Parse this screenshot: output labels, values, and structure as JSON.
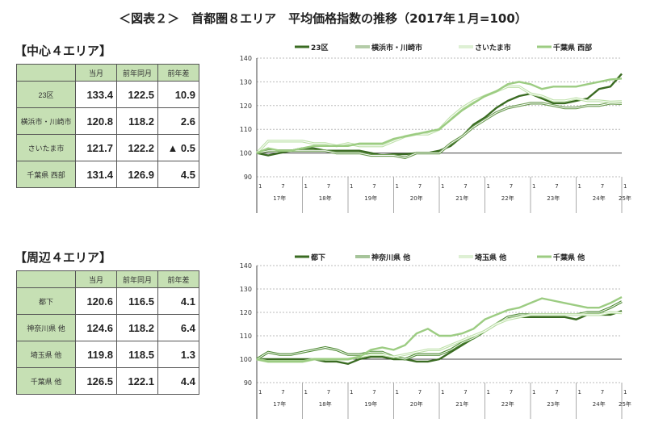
{
  "title": "＜図表２＞　首都圏８エリア　平均価格指数の推移（2017年１月=100）",
  "sections": [
    {
      "label": "【中心４エリア】",
      "headers": [
        "",
        "当月",
        "前年同月",
        "前年差"
      ],
      "rows": [
        [
          "23区",
          "133.4",
          "122.5",
          "10.9"
        ],
        [
          "横浜市・川崎市",
          "120.8",
          "118.2",
          "2.6"
        ],
        [
          "さいたま市",
          "121.7",
          "122.2",
          "▲ 0.5"
        ],
        [
          "千葉県 西部",
          "131.4",
          "126.9",
          "4.5"
        ]
      ]
    },
    {
      "label": "【周辺４エリア】",
      "headers": [
        "",
        "当月",
        "前年同月",
        "前年差"
      ],
      "rows": [
        [
          "都下",
          "120.6",
          "116.5",
          "4.1"
        ],
        [
          "神奈川県 他",
          "124.6",
          "118.2",
          "6.4"
        ],
        [
          "埼玉県 他",
          "119.8",
          "118.5",
          "1.3"
        ],
        [
          "千葉県 他",
          "126.5",
          "122.1",
          "4.4"
        ]
      ]
    }
  ],
  "chart_data": [
    {
      "type": "line",
      "ylim": [
        90,
        140
      ],
      "yticks": [
        90,
        100,
        110,
        120,
        130,
        140
      ],
      "grid": true,
      "legend": "top",
      "month_ticks": [
        "1",
        "7",
        "1",
        "7",
        "1",
        "7",
        "1",
        "7",
        "1",
        "7",
        "1",
        "7",
        "1",
        "7",
        "1",
        "7",
        "1"
      ],
      "years": [
        "17年",
        "18年",
        "19年",
        "20年",
        "21年",
        "22年",
        "23年",
        "24年",
        "25年"
      ],
      "x": "quarterly 2017-01 to 2025-01",
      "series": [
        {
          "name": "23区",
          "color": "#3a6b22",
          "style": "solid",
          "values": [
            100,
            99,
            100,
            101,
            102,
            102,
            101,
            101,
            101,
            101,
            100,
            99,
            99.5,
            99.5,
            100,
            100,
            101,
            103,
            107,
            112,
            115,
            119,
            122,
            124,
            125,
            123,
            121,
            121,
            122,
            123,
            127,
            128,
            133.4
          ]
        },
        {
          "name": "横浜市・川崎市",
          "color": "#6a9a50",
          "style": "double",
          "values": [
            100,
            101,
            101,
            101,
            101,
            101,
            101,
            100,
            100,
            100,
            99,
            99,
            99,
            98,
            100,
            100,
            100,
            104,
            107,
            111,
            114,
            117,
            119,
            120,
            121,
            121,
            120,
            119,
            119,
            120,
            120,
            121,
            120.8
          ]
        },
        {
          "name": "さいたま市",
          "color": "#bde0a8",
          "style": "double",
          "values": [
            100,
            105,
            105,
            105,
            105,
            104,
            104,
            103,
            104,
            103,
            103,
            103,
            105,
            107,
            108,
            108,
            110,
            115,
            119,
            122,
            124,
            126,
            128,
            128,
            125,
            124,
            122,
            122,
            123,
            122,
            122,
            121.5,
            121.7
          ]
        },
        {
          "name": "千葉県 西部",
          "color": "#9ccc82",
          "style": "solid",
          "values": [
            100,
            102,
            101,
            101,
            102,
            103,
            103,
            103,
            103,
            104,
            104,
            104,
            106,
            107,
            108,
            109,
            110,
            114,
            118,
            121,
            124,
            126,
            129,
            130,
            129,
            127,
            128,
            128,
            128,
            129,
            130,
            131,
            131.4
          ]
        }
      ]
    },
    {
      "type": "line",
      "ylim": [
        90,
        140
      ],
      "yticks": [
        90,
        100,
        110,
        120,
        130,
        140
      ],
      "grid": true,
      "legend": "top",
      "month_ticks": [
        "1",
        "7",
        "1",
        "7",
        "1",
        "7",
        "1",
        "7",
        "1",
        "7",
        "1",
        "7",
        "1",
        "7",
        "1",
        "7",
        "1"
      ],
      "years": [
        "17年",
        "18年",
        "19年",
        "20年",
        "21年",
        "22年",
        "23年",
        "24年",
        "25年"
      ],
      "x": "quarterly 2017-01 to 2025-01",
      "series": [
        {
          "name": "都下",
          "color": "#3a6b22",
          "style": "solid",
          "values": [
            100,
            100,
            100,
            100,
            100,
            100,
            99,
            99,
            98,
            100,
            101,
            101,
            100,
            100,
            99,
            99,
            100,
            103,
            106,
            109,
            112,
            115,
            117,
            118,
            118,
            118,
            118,
            118,
            117,
            119,
            119,
            119,
            120.6
          ]
        },
        {
          "name": "神奈川県 他",
          "color": "#4e8a34",
          "style": "double",
          "values": [
            100,
            103,
            102,
            102,
            103,
            104,
            105,
            104,
            102,
            102,
            103,
            103,
            101,
            100,
            102,
            102,
            102,
            104,
            107,
            109,
            112,
            115,
            118,
            119,
            119,
            119,
            119,
            119,
            119,
            120,
            120,
            122,
            124.6
          ]
        },
        {
          "name": "埼玉県 他",
          "color": "#bde0a8",
          "style": "double",
          "values": [
            100,
            99,
            99,
            99,
            99,
            100,
            100,
            100,
            100,
            101,
            102,
            102,
            101,
            102,
            103,
            104,
            104,
            106,
            108,
            110,
            112,
            115,
            117,
            118,
            119,
            119,
            119,
            119,
            119,
            119,
            119,
            120,
            119.8
          ]
        },
        {
          "name": "千葉県 他",
          "color": "#9ccc82",
          "style": "solid",
          "values": [
            100,
            99,
            99,
            99,
            99,
            100,
            100,
            100,
            100,
            101,
            104,
            105,
            104,
            106,
            111,
            113,
            110,
            110,
            111,
            113,
            117,
            119,
            121,
            122,
            124,
            126,
            125,
            124,
            123,
            122,
            122,
            124,
            126.5
          ]
        }
      ]
    }
  ]
}
